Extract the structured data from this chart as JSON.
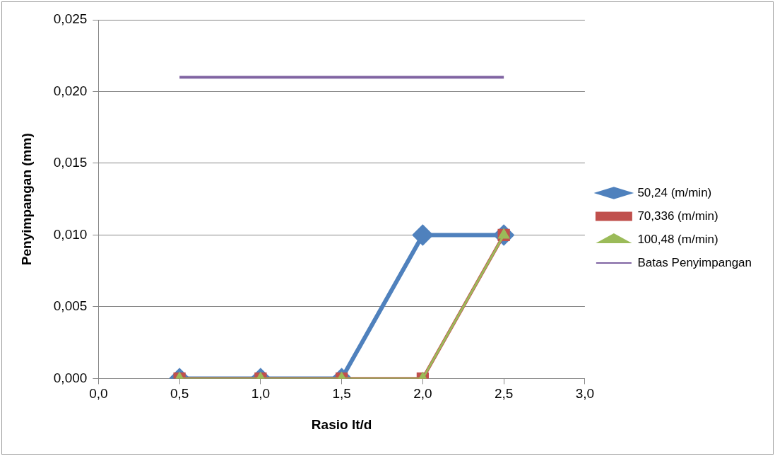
{
  "chart_data": {
    "type": "line",
    "xlabel": "Rasio lt/d",
    "ylabel": "Penyimpangan (mm)",
    "x": [
      0.5,
      1.0,
      1.5,
      2.0,
      2.5
    ],
    "series": [
      {
        "name": "50,24 (m/min)",
        "color": "#4f81bd",
        "marker": "diamond",
        "values": [
          0,
          0,
          0,
          0.01,
          0.01
        ]
      },
      {
        "name": "70,336 (m/min)",
        "color": "#c0504d",
        "marker": "square",
        "values": [
          0,
          0,
          0,
          0,
          0.01
        ]
      },
      {
        "name": "100,48 (m/min)",
        "color": "#9bbb59",
        "marker": "triangle",
        "values": [
          0,
          0,
          0,
          0,
          0.01
        ]
      },
      {
        "name": "Batas Penyimpangan",
        "color": "#8064a2",
        "marker": "none",
        "x": [
          0.5,
          2.5
        ],
        "values": [
          0.021,
          0.021
        ]
      }
    ],
    "xlim": [
      0,
      3
    ],
    "xticks": [
      {
        "value": 0,
        "label": "0,0"
      },
      {
        "value": 0.5,
        "label": "0,5"
      },
      {
        "value": 1,
        "label": "1,0"
      },
      {
        "value": 1.5,
        "label": "1,5"
      },
      {
        "value": 2,
        "label": "2,0"
      },
      {
        "value": 2.5,
        "label": "2,5"
      },
      {
        "value": 3,
        "label": "3,0"
      }
    ],
    "ylim": [
      0,
      0.025
    ],
    "yticks": [
      {
        "value": 0,
        "label": "0,000"
      },
      {
        "value": 0.005,
        "label": "0,005"
      },
      {
        "value": 0.01,
        "label": "0,010"
      },
      {
        "value": 0.015,
        "label": "0,015"
      },
      {
        "value": 0.02,
        "label": "0,020"
      },
      {
        "value": 0.025,
        "label": "0,025"
      }
    ],
    "grid": "y",
    "legend": "right",
    "line_style": "solid"
  }
}
